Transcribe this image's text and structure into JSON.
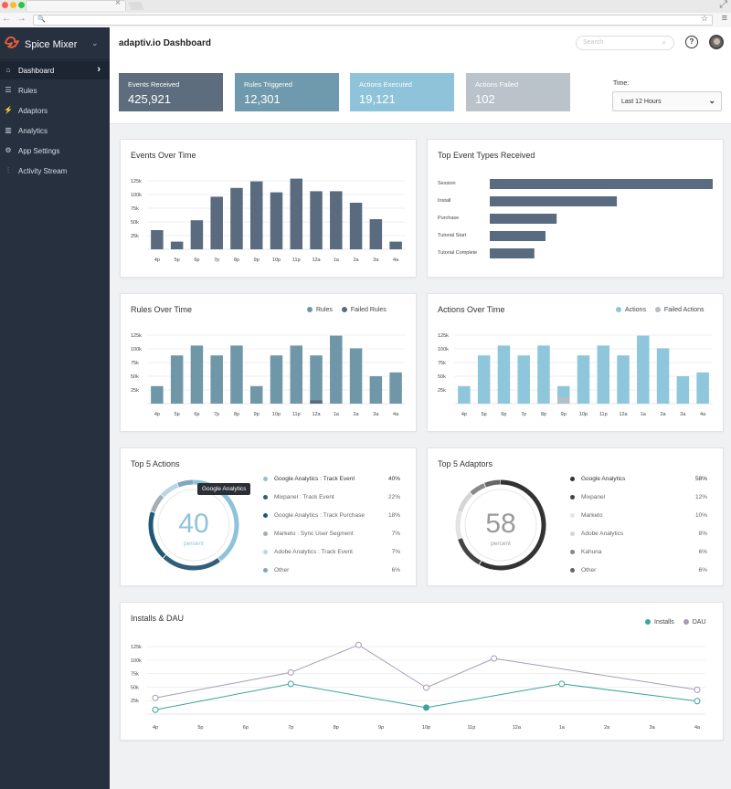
{
  "browser": {
    "dots": [
      "#ff5f56",
      "#ffbd2e",
      "#27c93f"
    ],
    "tab_close": "×",
    "nav_glyphs": "← → ○ ⌂",
    "expand_glyph": "⤢",
    "search_glyph": "🔍",
    "star_glyph": "☆",
    "menu_glyph": "≡"
  },
  "sidebar": {
    "brand": "Spice Mixer",
    "brand_chevron": "⌄",
    "active_chevron": "›",
    "items": [
      {
        "label": "Dashboard",
        "icon": "home-icon",
        "glyph": "⌂",
        "active": true
      },
      {
        "label": "Rules",
        "icon": "list-icon",
        "glyph": "☰",
        "active": false
      },
      {
        "label": "Adaptors",
        "icon": "plug-icon",
        "glyph": "⚡",
        "active": false
      },
      {
        "label": "Analytics",
        "icon": "bar-chart-icon",
        "glyph": "▥",
        "active": false
      },
      {
        "label": "App Settings",
        "icon": "gear-icon",
        "glyph": "⚙",
        "active": false
      },
      {
        "label": "Activity Stream",
        "icon": "stream-icon",
        "glyph": "⫶",
        "active": false
      }
    ]
  },
  "header": {
    "title": "adaptiv.io Dashboard",
    "search_placeholder": "Search",
    "search_icon": "⌕",
    "help": "?"
  },
  "stats": [
    {
      "label": "Events Received",
      "value": "425,921",
      "color": "#5d6d7e"
    },
    {
      "label": "Rules Triggered",
      "value": "12,301",
      "color": "#6f9aad"
    },
    {
      "label": "Actions Executed",
      "value": "19,121",
      "color": "#8ec3da"
    },
    {
      "label": "Actions Failed",
      "value": "102",
      "color": "#b9c3c9"
    }
  ],
  "time": {
    "label": "Time:",
    "value": "Last 12 Hours",
    "chevron": "⌄"
  },
  "colors": {
    "events": "#5a6b7f",
    "rules": "#6f97a8",
    "actions": "#8ec6dc",
    "failed": "#b3bec5",
    "installs": "#3aa59a",
    "dau": "#a99ab8"
  },
  "cards": {
    "events_over_time": {
      "title": "Events Over Time"
    },
    "top_event_types": {
      "title": "Top Event Types Received"
    },
    "rules_over_time": {
      "title": "Rules Over Time",
      "legend": [
        "Rules",
        "Failed Rules"
      ]
    },
    "actions_over_time": {
      "title": "Actions Over Time",
      "legend": [
        "Actions",
        "Failed Actions"
      ]
    },
    "top5_actions": {
      "title": "Top 5 Actions",
      "center_value": "40",
      "center_label": "percent",
      "tooltip": "Google Analytics"
    },
    "top5_adaptors": {
      "title": "Top 5 Adaptors",
      "center_value": "58",
      "center_label": "percent"
    },
    "installs_dau": {
      "title": "Installs & DAU",
      "legend": [
        "Installs",
        "DAU"
      ]
    }
  },
  "chart_data": [
    {
      "type": "bar",
      "title": "Events Over Time",
      "categories": [
        "4p",
        "5p",
        "6p",
        "7p",
        "8p",
        "9p",
        "10p",
        "11p",
        "12a",
        "1a",
        "2a",
        "3a",
        "4a"
      ],
      "y_ticks": [
        "125k",
        "100k",
        "75k",
        "50k",
        "25k"
      ],
      "ylim": [
        0,
        125000
      ],
      "values": [
        35000,
        14000,
        53000,
        96000,
        112000,
        124000,
        104000,
        129000,
        106000,
        106000,
        85000,
        55000,
        14000
      ]
    },
    {
      "type": "bar",
      "orientation": "horizontal",
      "title": "Top Event Types Received",
      "categories": [
        "Session",
        "Install",
        "Purchase",
        "Tutorial Start",
        "Tutorial Complete"
      ],
      "values": [
        100,
        57,
        30,
        25,
        20
      ]
    },
    {
      "type": "bar",
      "title": "Rules Over Time",
      "categories": [
        "4p",
        "5p",
        "6p",
        "7p",
        "8p",
        "9p",
        "10p",
        "11p",
        "12a",
        "1a",
        "2a",
        "3a",
        "4a"
      ],
      "y_ticks": [
        "125k",
        "100k",
        "75k",
        "50k",
        "25k"
      ],
      "ylim": [
        0,
        125000
      ],
      "series": [
        {
          "name": "Rules",
          "values": [
            32000,
            88000,
            106000,
            88000,
            106000,
            32000,
            88000,
            106000,
            88000,
            124000,
            101000,
            50000,
            57000
          ]
        },
        {
          "name": "Failed Rules",
          "values": [
            0,
            0,
            0,
            0,
            0,
            0,
            0,
            0,
            6000,
            0,
            0,
            0,
            0
          ]
        }
      ]
    },
    {
      "type": "bar",
      "title": "Actions Over Time",
      "categories": [
        "4p",
        "5p",
        "6p",
        "7p",
        "8p",
        "9p",
        "10p",
        "11p",
        "12a",
        "1a",
        "2a",
        "3a",
        "4a"
      ],
      "y_ticks": [
        "125k",
        "100k",
        "75k",
        "50k",
        "25k"
      ],
      "ylim": [
        0,
        125000
      ],
      "series": [
        {
          "name": "Actions",
          "values": [
            32000,
            88000,
            106000,
            88000,
            106000,
            32000,
            88000,
            106000,
            88000,
            124000,
            101000,
            50000,
            57000
          ]
        },
        {
          "name": "Failed Actions",
          "values": [
            0,
            0,
            0,
            0,
            0,
            12000,
            0,
            0,
            0,
            0,
            0,
            0,
            0
          ]
        }
      ]
    },
    {
      "type": "pie",
      "title": "Top 5 Actions",
      "categories": [
        "Google Analytics : Track Event",
        "Mixpanel : Track Event",
        "Google Analytics : Track Purchase",
        "Marketo : Sync User Segment",
        "Adobe Analytics : Track Event",
        "Other"
      ],
      "labels": [
        "40%",
        "22%",
        "18%",
        "7%",
        "7%",
        "6%"
      ],
      "values": [
        40,
        22,
        18,
        7,
        7,
        6
      ],
      "colors": [
        "#8ec3da",
        "#2f5f79",
        "#1f5977",
        "#a3aeb6",
        "#b9d6e6",
        "#7fa7c0"
      ]
    },
    {
      "type": "pie",
      "title": "Top 5 Adaptors",
      "categories": [
        "Google Analytics",
        "Mixpanel",
        "Marketo",
        "Adobe Analytics",
        "Kahuna",
        "Other"
      ],
      "labels": [
        "58%",
        "12%",
        "10%",
        "8%",
        "6%",
        "6%"
      ],
      "values": [
        58,
        12,
        10,
        8,
        6,
        6
      ],
      "colors": [
        "#333333",
        "#444444",
        "#e3e3e3",
        "#d5d5d5",
        "#888888",
        "#666666"
      ]
    },
    {
      "type": "line",
      "title": "Installs & DAU",
      "categories": [
        "4p",
        "5p",
        "6p",
        "7p",
        "8p",
        "9p",
        "10p",
        "11p",
        "12a",
        "1a",
        "2a",
        "3a",
        "4a"
      ],
      "y_ticks": [
        "125k",
        "100k",
        "75k",
        "50k",
        "25k"
      ],
      "ylim": [
        0,
        125000
      ],
      "series": [
        {
          "name": "Installs",
          "x": [
            0,
            3,
            6,
            9,
            12
          ],
          "values": [
            8000,
            56000,
            12000,
            56000,
            24000
          ]
        },
        {
          "name": "DAU",
          "x": [
            0,
            3,
            4.5,
            6,
            7.5,
            12
          ],
          "values": [
            30000,
            77000,
            128000,
            49000,
            103000,
            45000
          ]
        }
      ]
    }
  ]
}
